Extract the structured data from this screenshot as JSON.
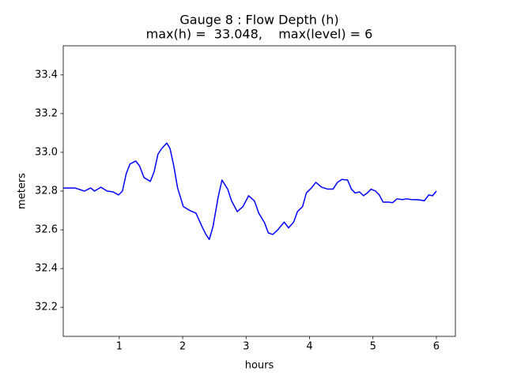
{
  "chart_data": {
    "type": "line",
    "title": [
      "Gauge 8 : Flow Depth (h)",
      "max(h) =  33.048,    max(level) = 6"
    ],
    "x_label": "hours",
    "y_label": "meters",
    "x": [
      0.117,
      0.3,
      0.36,
      0.45,
      0.55,
      0.61,
      0.71,
      0.81,
      0.9,
      0.99,
      1.05,
      1.11,
      1.17,
      1.26,
      1.32,
      1.39,
      1.49,
      1.55,
      1.61,
      1.67,
      1.75,
      1.8,
      1.86,
      1.92,
      2.01,
      2.11,
      2.21,
      2.3,
      2.36,
      2.42,
      2.48,
      2.56,
      2.62,
      2.71,
      2.77,
      2.86,
      2.95,
      3.04,
      3.13,
      3.2,
      3.29,
      3.35,
      3.42,
      3.5,
      3.6,
      3.67,
      3.75,
      3.81,
      3.89,
      3.95,
      4.03,
      4.1,
      4.19,
      4.29,
      4.37,
      4.44,
      4.51,
      4.6,
      4.66,
      4.72,
      4.79,
      4.85,
      4.91,
      4.97,
      5.04,
      5.1,
      5.16,
      5.25,
      5.31,
      5.38,
      5.47,
      5.53,
      5.6,
      5.72,
      5.81,
      5.88,
      5.94,
      6.0
    ],
    "series": [
      {
        "name": "h",
        "color": "#0000ff",
        "values": [
          32.816,
          32.816,
          32.81,
          32.8,
          32.816,
          32.8,
          32.82,
          32.8,
          32.796,
          32.78,
          32.8,
          32.89,
          32.94,
          32.955,
          32.93,
          32.87,
          32.85,
          32.9,
          32.99,
          33.02,
          33.048,
          33.02,
          32.93,
          32.816,
          32.72,
          32.7,
          32.686,
          32.62,
          32.58,
          32.55,
          32.62,
          32.77,
          32.857,
          32.81,
          32.75,
          32.694,
          32.72,
          32.776,
          32.75,
          32.686,
          32.637,
          32.584,
          32.576,
          32.6,
          32.64,
          32.61,
          32.64,
          32.694,
          32.72,
          32.79,
          32.816,
          32.845,
          32.82,
          32.81,
          32.81,
          32.845,
          32.86,
          32.857,
          32.81,
          32.79,
          32.796,
          32.776,
          32.79,
          32.81,
          32.8,
          32.78,
          32.743,
          32.743,
          32.74,
          32.76,
          32.756,
          32.76,
          32.756,
          32.755,
          32.75,
          32.78,
          32.776,
          32.8
        ]
      }
    ],
    "xlim": [
      0.117,
      6.3
    ],
    "xticks": [
      1,
      2,
      3,
      4,
      5,
      6
    ],
    "ylim": [
      32.05,
      33.55
    ],
    "yticks": [
      32.2,
      32.4,
      32.6,
      32.8,
      {
        "value": 33,
        "label": "33.0"
      },
      33.2,
      33.4
    ]
  }
}
